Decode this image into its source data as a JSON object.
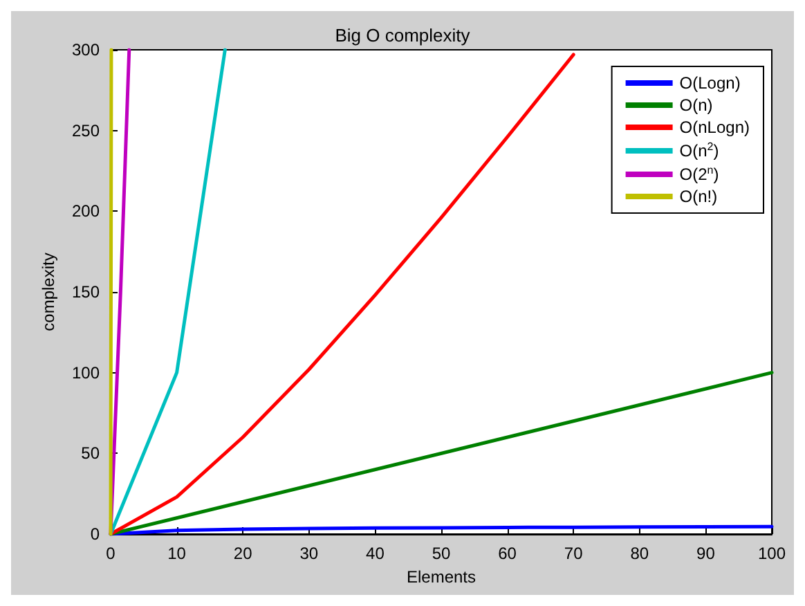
{
  "chart_data": {
    "type": "line",
    "title": "Big O complexity",
    "xlabel": "Elements",
    "ylabel": "complexity",
    "xlim": [
      0,
      100
    ],
    "xticks": [
      0,
      10,
      20,
      30,
      40,
      50,
      60,
      70,
      80,
      90,
      100
    ],
    "ylim": [
      0,
      300
    ],
    "yticks": [
      0,
      50,
      100,
      150,
      200,
      250,
      300
    ],
    "grid": false,
    "legend": "top right",
    "marker": "none",
    "line_style": "solid",
    "series": [
      {
        "name": "O(Logn)",
        "color": "#0000ff",
        "x": [
          0,
          10,
          20,
          30,
          40,
          50,
          60,
          70,
          80,
          90,
          100
        ],
        "values": [
          0,
          2.3,
          3,
          3.4,
          3.7,
          3.9,
          4.1,
          4.2,
          4.4,
          4.5,
          4.6
        ]
      },
      {
        "name": "O(n)",
        "color": "#008000",
        "x": [
          0,
          100
        ],
        "values": [
          0,
          100
        ]
      },
      {
        "name": "O(nLogn)",
        "color": "#ff0000",
        "x": [
          0,
          10,
          20,
          30,
          40,
          50,
          60,
          70
        ],
        "values": [
          0,
          23,
          60,
          102,
          148,
          196,
          246,
          297
        ]
      },
      {
        "name": "O(n$^{2}$)",
        "color": "#00bfbf",
        "x": [
          0,
          10,
          17.3
        ],
        "values": [
          0,
          100,
          300
        ]
      },
      {
        "name": "O(2$^{n}$)",
        "color": "#bf00bf",
        "x": [
          0,
          0.5,
          1.5,
          2.8
        ],
        "values": [
          0,
          50,
          150,
          300
        ]
      },
      {
        "name": "O(n!)",
        "color": "#bfbf00",
        "x": [
          0,
          0.1
        ],
        "values": [
          0,
          300
        ]
      }
    ]
  }
}
